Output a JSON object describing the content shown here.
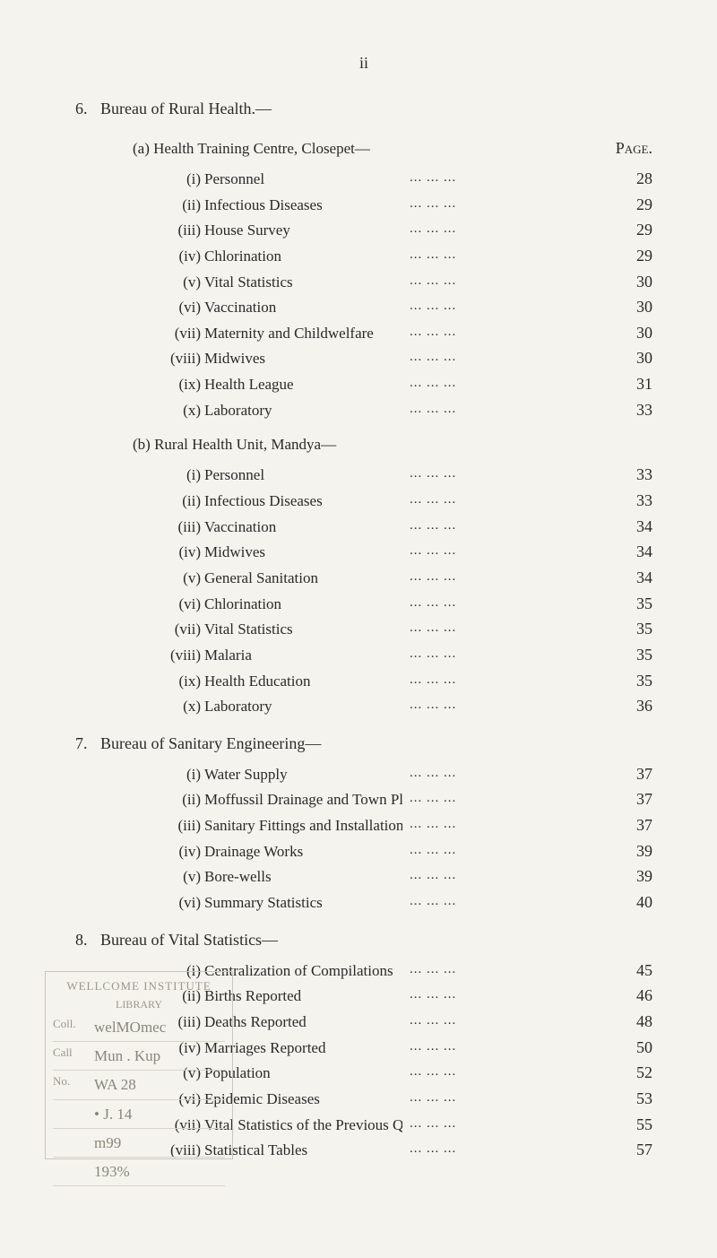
{
  "page_number_top": "ii",
  "page_label": "Page.",
  "sections": [
    {
      "num": "6.",
      "title": "Bureau of Rural Health.—",
      "subsections": [
        {
          "letter": "(a)",
          "title": "Health Training Centre, Closepet—",
          "show_page_header": true,
          "items": [
            {
              "roman": "(i)",
              "label": "Personnel",
              "page": "28"
            },
            {
              "roman": "(ii)",
              "label": "Infectious Diseases",
              "page": "29"
            },
            {
              "roman": "(iii)",
              "label": "House Survey",
              "page": "29"
            },
            {
              "roman": "(iv)",
              "label": "Chlorination",
              "page": "29"
            },
            {
              "roman": "(v)",
              "label": "Vital Statistics",
              "page": "30"
            },
            {
              "roman": "(vi)",
              "label": "Vaccination",
              "page": "30"
            },
            {
              "roman": "(vii)",
              "label": "Maternity and Childwelfare",
              "page": "30"
            },
            {
              "roman": "(viii)",
              "label": "Midwives",
              "page": "30"
            },
            {
              "roman": "(ix)",
              "label": "Health League",
              "page": "31"
            },
            {
              "roman": "(x)",
              "label": "Laboratory",
              "page": "33"
            }
          ]
        },
        {
          "letter": "(b)",
          "title": "Rural Health Unit, Mandya—",
          "items": [
            {
              "roman": "(i)",
              "label": "Personnel",
              "page": "33"
            },
            {
              "roman": "(ii)",
              "label": "Infectious Diseases",
              "page": "33"
            },
            {
              "roman": "(iii)",
              "label": "Vaccination",
              "page": "34"
            },
            {
              "roman": "(iv)",
              "label": "Midwives",
              "page": "34"
            },
            {
              "roman": "(v)",
              "label": "General Sanitation",
              "page": "34"
            },
            {
              "roman": "(vi)",
              "label": "Chlorination",
              "page": "35"
            },
            {
              "roman": "(vii)",
              "label": "Vital Statistics",
              "page": "35"
            },
            {
              "roman": "(viii)",
              "label": "Malaria",
              "page": "35"
            },
            {
              "roman": "(ix)",
              "label": "Health Education",
              "page": "35"
            },
            {
              "roman": "(x)",
              "label": "Laboratory",
              "page": "36"
            }
          ]
        }
      ]
    },
    {
      "num": "7.",
      "title": "Bureau of Sanitary Engineering—",
      "subsections": [
        {
          "letter": "",
          "title": "",
          "items": [
            {
              "roman": "(i)",
              "label": "Water Supply",
              "page": "37"
            },
            {
              "roman": "(ii)",
              "label": "Moffussil Drainage and Town Planning",
              "page": "37"
            },
            {
              "roman": "(iii)",
              "label": "Sanitary Fittings and Installations",
              "page": "37"
            },
            {
              "roman": "(iv)",
              "label": "Drainage Works",
              "page": "39"
            },
            {
              "roman": "(v)",
              "label": "Bore-wells",
              "page": "39"
            },
            {
              "roman": "(vi)",
              "label": "Summary Statistics",
              "page": "40"
            }
          ]
        }
      ]
    },
    {
      "num": "8.",
      "title": "Bureau of Vital Statistics—",
      "subsections": [
        {
          "letter": "",
          "title": "",
          "items": [
            {
              "roman": "(i)",
              "label": "Centralization of Compilations",
              "page": "45"
            },
            {
              "roman": "(ii)",
              "label": "Births Reported",
              "page": "46"
            },
            {
              "roman": "(iii)",
              "label": "Deaths Reported",
              "page": "48"
            },
            {
              "roman": "(iv)",
              "label": "Marriages Reported",
              "page": "50"
            },
            {
              "roman": "(v)",
              "label": "Population",
              "page": "52"
            },
            {
              "roman": "(vi)",
              "label": "Epidemic Diseases",
              "page": "53"
            },
            {
              "roman": "(vii)",
              "label": "Vital Statistics of the Previous Quarter",
              "page": "55"
            },
            {
              "roman": "(viii)",
              "label": "Statistical Tables",
              "page": "57"
            }
          ]
        }
      ]
    }
  ],
  "stamp": {
    "line1": "WELLCOME INSTITUTE",
    "line2": "LIBRARY",
    "rows": [
      {
        "label": "Coll.",
        "value": "welMOmec"
      },
      {
        "label": "Call",
        "value": "Mun . Kup"
      },
      {
        "label": "No.",
        "value": "WA 28"
      },
      {
        "label": "",
        "value": "• J. 14"
      },
      {
        "label": "",
        "value": "m99"
      },
      {
        "label": "",
        "value": "193%"
      }
    ]
  },
  "colors": {
    "background": "#f5f3ee",
    "text": "#2a2a2a",
    "stamp_border": "#c9c6bd",
    "stamp_text": "#9b978a"
  },
  "typography": {
    "body_family": "Times New Roman, Georgia, serif",
    "body_size_pt": 13,
    "heading_size_pt": 14
  }
}
